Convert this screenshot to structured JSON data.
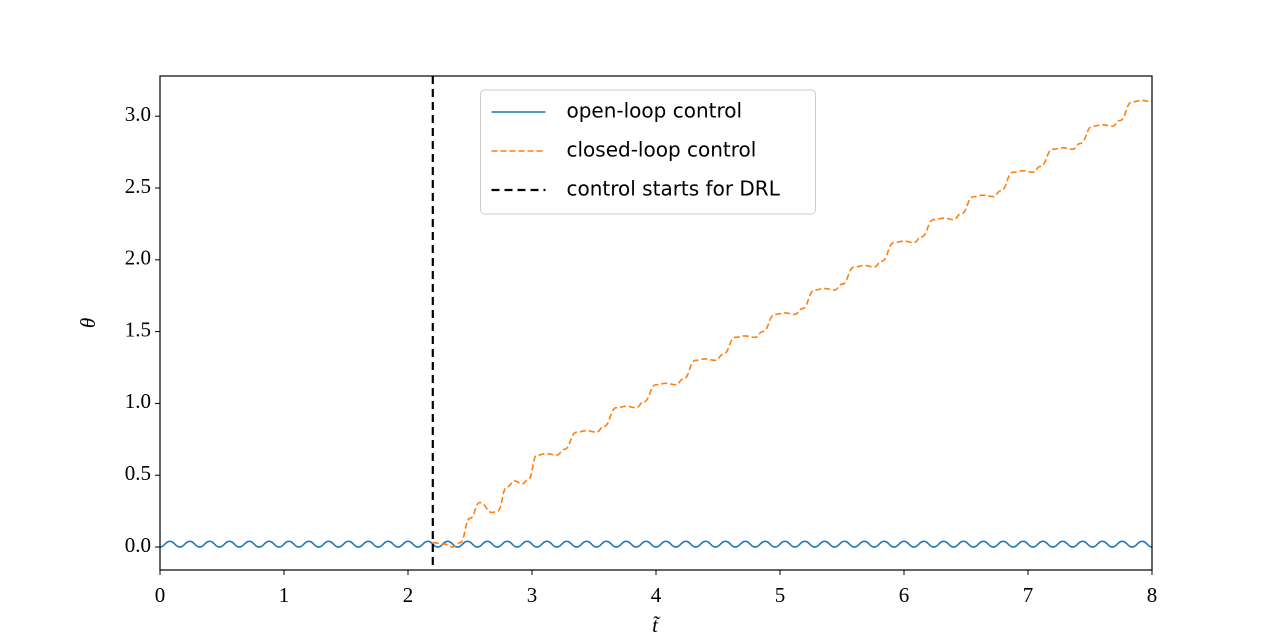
{
  "chart_data": {
    "type": "line",
    "xlabel": "t̃",
    "ylabel": "θ",
    "xlim": [
      0,
      8
    ],
    "ylim": [
      -0.16,
      3.28
    ],
    "xticks": [
      0,
      1,
      2,
      3,
      4,
      5,
      6,
      7,
      8
    ],
    "yticks": [
      {
        "value": 0,
        "label": "0.0"
      },
      0.5,
      {
        "value": 1,
        "label": "1.0"
      },
      1.5,
      {
        "value": 2,
        "label": "2.0"
      },
      2.5,
      {
        "value": 3,
        "label": "3.0"
      }
    ],
    "legend": "upper center",
    "series": [
      {
        "name": "open-loop control",
        "color": "#1f77b4",
        "style": "solid",
        "x": [
          0,
          0.08,
          0.16,
          0.24,
          0.32,
          0.4,
          0.48,
          0.56,
          0.64,
          0.72,
          0.8,
          0.88,
          0.96,
          1.04,
          1.12,
          1.2,
          1.28,
          1.36,
          1.44,
          1.52,
          1.6,
          1.68,
          1.76,
          1.84,
          1.92,
          2,
          2.08,
          2.16,
          2.24,
          2.32,
          2.4,
          2.48,
          2.56,
          2.64,
          2.72,
          2.8,
          2.88,
          2.96,
          3.04,
          3.12,
          3.2,
          3.28,
          3.36,
          3.44,
          3.52,
          3.6,
          3.68,
          3.76,
          3.84,
          3.92,
          4,
          4.08,
          4.16,
          4.24,
          4.32,
          4.4,
          4.48,
          4.56,
          4.64,
          4.72,
          4.8,
          4.88,
          4.96,
          5.04,
          5.12,
          5.2,
          5.28,
          5.36,
          5.44,
          5.52,
          5.6,
          5.68,
          5.76,
          5.84,
          5.92,
          6,
          6.08,
          6.16,
          6.24,
          6.32,
          6.4,
          6.48,
          6.56,
          6.64,
          6.72,
          6.8,
          6.88,
          6.96,
          7.04,
          7.12,
          7.2,
          7.28,
          7.36,
          7.44,
          7.52,
          7.6,
          7.68,
          7.76,
          7.84,
          7.92,
          8
        ],
        "values": [
          0,
          0.04,
          0,
          0.04,
          0,
          0.04,
          0,
          0.04,
          0,
          0.04,
          0,
          0.04,
          0,
          0.04,
          0,
          0.04,
          0,
          0.04,
          0,
          0.04,
          0,
          0.04,
          0,
          0.04,
          0,
          0.04,
          0,
          0.04,
          0,
          0.04,
          0,
          0.04,
          0,
          0.04,
          0,
          0.04,
          0,
          0.04,
          0,
          0.04,
          0,
          0.04,
          0,
          0.04,
          0,
          0.04,
          0,
          0.04,
          0,
          0.04,
          0,
          0.04,
          0,
          0.04,
          0,
          0.04,
          0,
          0.04,
          0,
          0.04,
          0,
          0.04,
          0,
          0.04,
          0,
          0.04,
          0,
          0.04,
          0,
          0.04,
          0,
          0.04,
          0,
          0.04,
          0,
          0.04,
          0,
          0.04,
          0,
          0.04,
          0,
          0.04,
          0,
          0.04,
          0,
          0.04,
          0,
          0.04,
          0,
          0.04,
          0,
          0.04,
          0,
          0.04,
          0,
          0.04,
          0,
          0.04,
          0,
          0.04,
          0
        ]
      },
      {
        "name": "closed-loop control",
        "color": "#ff7f0e",
        "style": "dashed",
        "x": [
          2.2,
          2.3,
          2.36,
          2.42,
          2.5,
          2.58,
          2.68,
          2.72,
          2.8,
          2.86,
          2.92,
          2.97,
          3.04,
          3.12,
          3.2,
          3.26,
          3.36,
          3.44,
          3.52,
          3.58,
          3.68,
          3.76,
          3.84,
          3.9,
          4,
          4.08,
          4.16,
          4.22,
          4.32,
          4.4,
          4.48,
          4.54,
          4.64,
          4.72,
          4.8,
          4.86,
          4.96,
          5.04,
          5.12,
          5.18,
          5.28,
          5.36,
          5.44,
          5.5,
          5.6,
          5.68,
          5.76,
          5.82,
          5.92,
          6,
          6.08,
          6.14,
          6.24,
          6.32,
          6.4,
          6.46,
          6.56,
          6.64,
          6.72,
          6.78,
          6.88,
          6.96,
          7.04,
          7.1,
          7.2,
          7.28,
          7.36,
          7.42,
          7.52,
          7.6,
          7.68,
          7.74,
          7.84,
          7.92,
          8
        ],
        "values": [
          0.03,
          0.02,
          0,
          0.03,
          0.2,
          0.31,
          0.24,
          0.25,
          0.42,
          0.46,
          0.44,
          0.47,
          0.64,
          0.65,
          0.64,
          0.68,
          0.8,
          0.81,
          0.8,
          0.84,
          0.97,
          0.98,
          0.97,
          1.01,
          1.13,
          1.14,
          1.13,
          1.17,
          1.3,
          1.31,
          1.3,
          1.34,
          1.46,
          1.47,
          1.46,
          1.5,
          1.62,
          1.63,
          1.62,
          1.66,
          1.79,
          1.8,
          1.79,
          1.83,
          1.95,
          1.96,
          1.95,
          1.99,
          2.12,
          2.13,
          2.12,
          2.16,
          2.28,
          2.29,
          2.28,
          2.32,
          2.44,
          2.45,
          2.44,
          2.48,
          2.61,
          2.62,
          2.61,
          2.65,
          2.77,
          2.78,
          2.77,
          2.81,
          2.93,
          2.94,
          2.93,
          2.97,
          3.1,
          3.11,
          3.1
        ]
      }
    ],
    "vline": {
      "x": 2.2,
      "name": "control starts for DRL",
      "color": "#000000"
    }
  }
}
